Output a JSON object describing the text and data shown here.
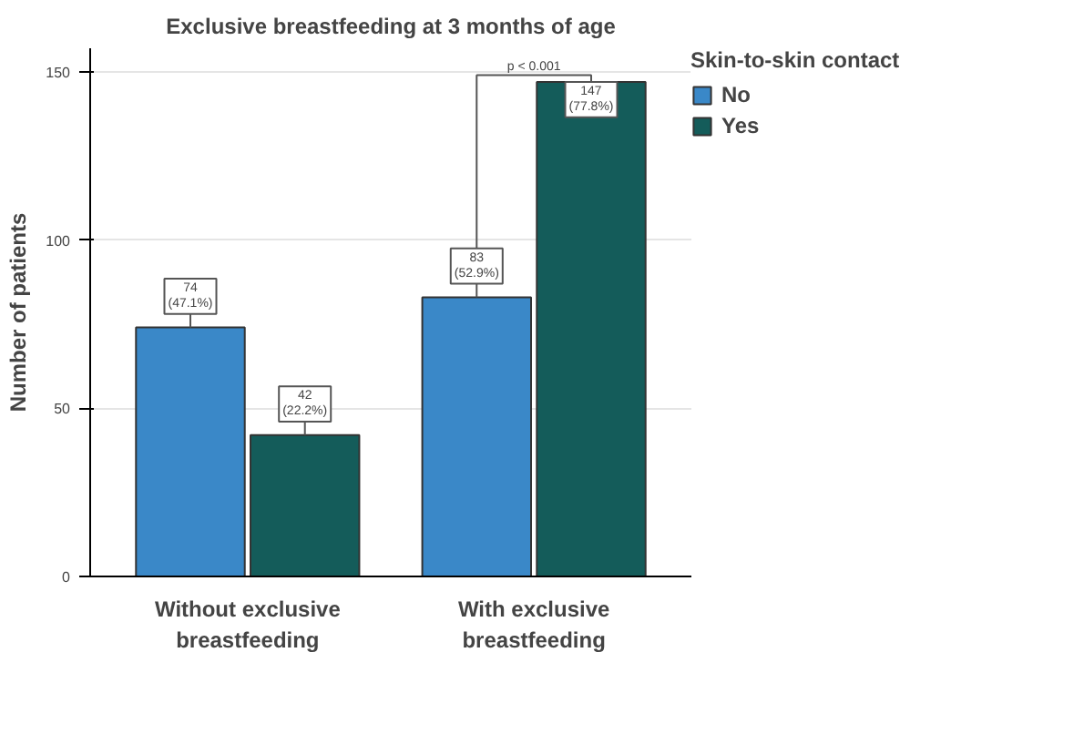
{
  "chart_data": {
    "type": "bar",
    "title": "Exclusive breastfeeding at 3 months of age",
    "ylabel": "Number of patients",
    "legend_title": "Skin-to-skin contact",
    "categories": [
      "Without exclusive\nbreastfeeding",
      "With exclusive\nbreastfeeding"
    ],
    "series": [
      {
        "name": "No",
        "color": "#3a88c8",
        "values": [
          74,
          83
        ],
        "value_labels": [
          "74\n(47.1%)",
          "83\n(52.9%)"
        ]
      },
      {
        "name": "Yes",
        "color": "#145c5a",
        "values": [
          42,
          147
        ],
        "value_labels": [
          "42\n(22.2%)",
          "147\n(77.8%)"
        ]
      }
    ],
    "annotations": [
      "p < 0.001"
    ],
    "ylim": [
      0,
      157
    ],
    "yticks": [
      0,
      50,
      100,
      150
    ],
    "grid": "y",
    "legend": "top right"
  }
}
